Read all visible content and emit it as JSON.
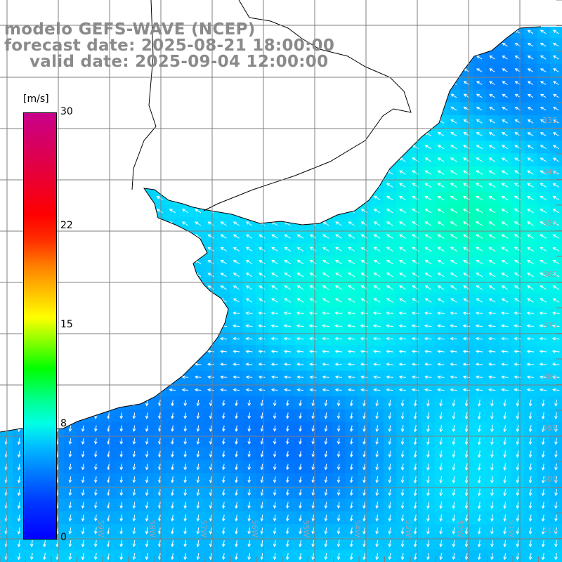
{
  "titles": {
    "model": "modelo GEFS-WAVE (NCEP)",
    "forecast": "forecast date: 2025-08-21 18:00:00",
    "valid": "valid date: 2025-09-04 12:00:00"
  },
  "colorbar": {
    "unit": "[m/s]",
    "ticks": [
      {
        "label": "30",
        "value": 30
      },
      {
        "label": "22",
        "value": 22
      },
      {
        "label": "15",
        "value": 15
      },
      {
        "label": "8",
        "value": 8
      },
      {
        "label": "0",
        "value": 0
      }
    ],
    "min": 0,
    "max": 30
  },
  "map": {
    "lat_labels": [
      "33S",
      "34S",
      "35S",
      "36S",
      "37S",
      "38S",
      "39S",
      "40S",
      "41S"
    ],
    "lon_labels": [
      "61W",
      "60W",
      "59W",
      "58W",
      "57W",
      "56W",
      "55W",
      "54W",
      "53W",
      "52W",
      "51W"
    ],
    "colors": {
      "land": "#ffffff",
      "coast": "#000000",
      "grid": "#808080",
      "arrow": "#ffffff"
    }
  }
}
